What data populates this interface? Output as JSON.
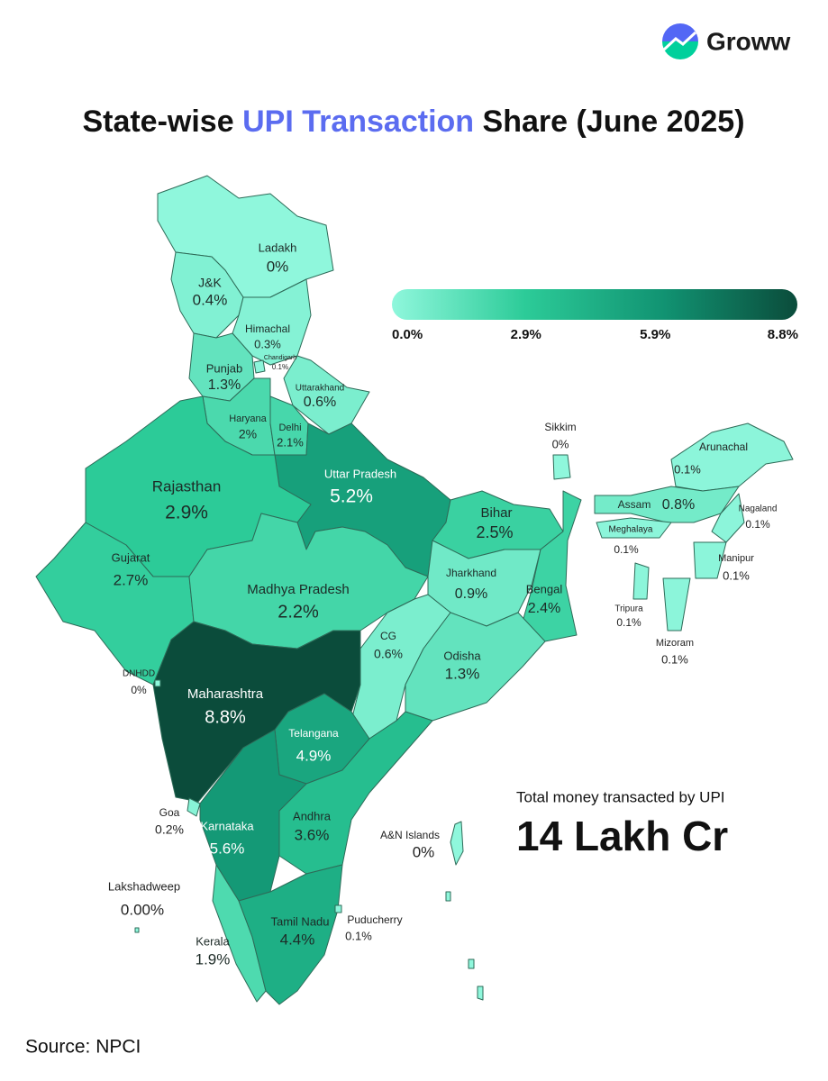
{
  "brand": "Groww",
  "title": {
    "before": "State-wise",
    "highlight": "UPI Transaction",
    "after": "Share (June 2025)"
  },
  "chart_data": {
    "type": "choropleth",
    "regions": {
      "names": [
        "Ladakh",
        "J&K",
        "Himachal",
        "Chandigarh",
        "Punjab",
        "Uttarakhand",
        "Haryana",
        "Delhi",
        "Uttar Pradesh",
        "Rajasthan",
        "Gujarat",
        "Madhya Pradesh",
        "Bihar",
        "Jharkhand",
        "Bengal",
        "CG",
        "Odisha",
        "Maharashtra",
        "Telangana",
        "Andhra",
        "Karnataka",
        "Goa",
        "Kerala",
        "Tamil Nadu",
        "Puducherry",
        "Lakshadweep",
        "DNHDD",
        "A&N Islands",
        "Sikkim",
        "Arunachal",
        "Assam",
        "Nagaland",
        "Meghalaya",
        "Manipur",
        "Tripura",
        "Mizoram"
      ],
      "values": [
        0,
        0.4,
        0.3,
        0.1,
        1.3,
        0.6,
        2,
        2.1,
        5.2,
        2.9,
        2.7,
        2.2,
        2.5,
        0.9,
        2.4,
        0.6,
        1.3,
        8.8,
        4.9,
        3.6,
        5.6,
        0.2,
        1.9,
        4.4,
        0.1,
        0,
        0,
        0,
        0,
        0.1,
        0.8,
        0.1,
        0.1,
        0.1,
        0.1,
        0.1
      ],
      "value_labels": [
        "0%",
        "0.4%",
        "0.3%",
        "0.1%",
        "1.3%",
        "0.6%",
        "2%",
        "2.1%",
        "5.2%",
        "2.9%",
        "2.7%",
        "2.2%",
        "2.5%",
        "0.9%",
        "2.4%",
        "0.6%",
        "1.3%",
        "8.8%",
        "4.9%",
        "3.6%",
        "5.6%",
        "0.2%",
        "1.9%",
        "4.4%",
        "0.1%",
        "0.00%",
        "0%",
        "0%",
        "0%",
        "0.1%",
        "0.8%",
        "0.1%",
        "0.1%",
        "0.1%",
        "0.1%",
        "0.1%"
      ]
    },
    "colorbar": {
      "range": [
        0,
        8.8
      ],
      "ticks": [
        {
          "value": 0,
          "label": "0.0%"
        },
        {
          "value": 2.9,
          "label": "2.9%"
        },
        {
          "value": 5.9,
          "label": "5.9%"
        },
        {
          "value": 8.8,
          "label": "8.8%"
        }
      ],
      "colors": [
        "#8ff7dc",
        "#2ccb98",
        "#119372",
        "#0b4c3b"
      ]
    },
    "annotation": {
      "caption": "Total money transacted by UPI",
      "total": "14 Lakh Cr"
    },
    "source": "Source: NPCI"
  }
}
